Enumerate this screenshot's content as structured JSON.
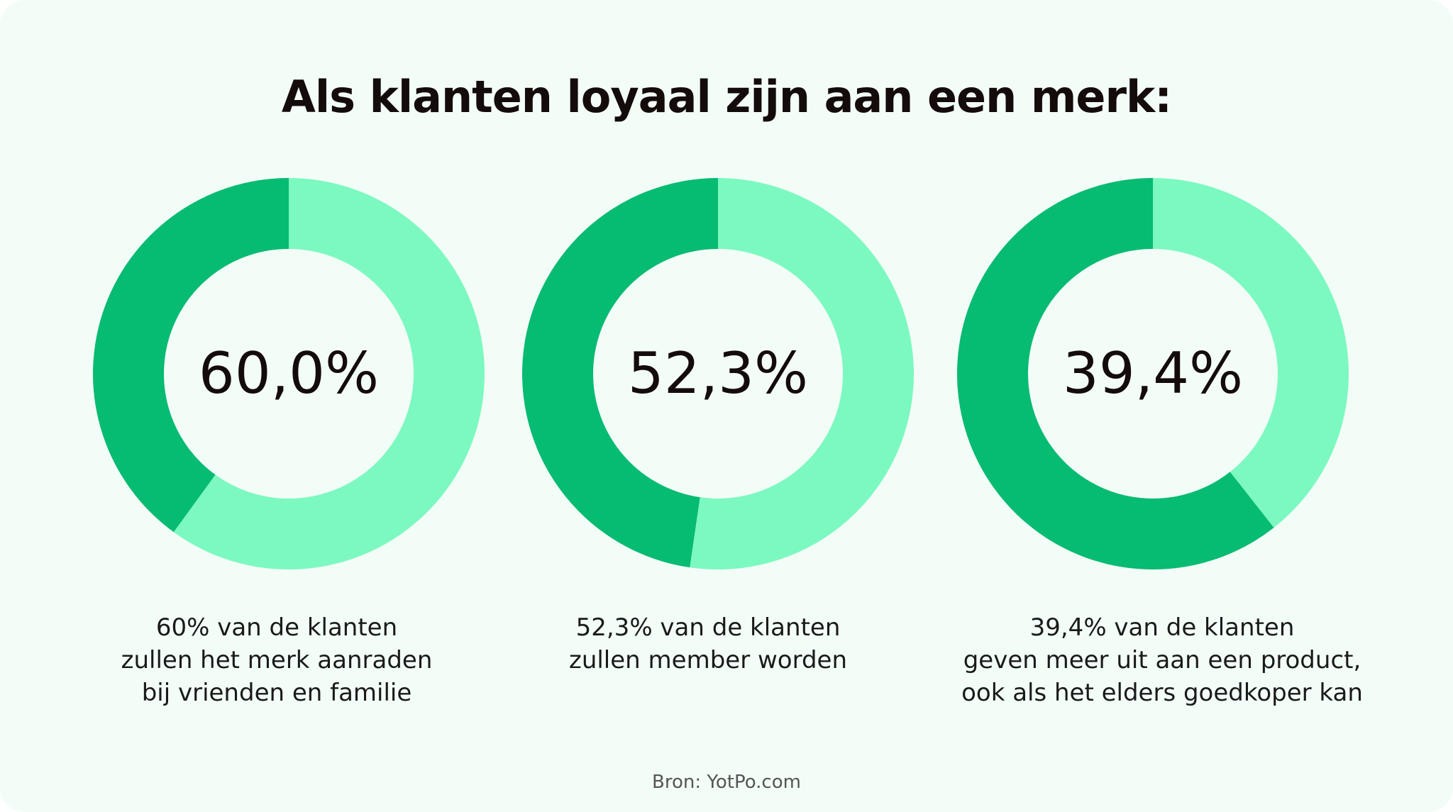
{
  "title": "Als klanten loyaal zijn aan een merk:",
  "source": "Bron: YotPo.com",
  "colors": {
    "background": "#f3fdf7",
    "dark_green": "#06bb72",
    "light_green": "#7cf9c0"
  },
  "chart_data": [
    {
      "type": "pie",
      "value_label": "60,0%",
      "caption": [
        "60% van de klanten",
        "zullen het merk aanraden",
        "bij vrienden en familie"
      ],
      "slices": [
        {
          "value": 60.0,
          "color": "#7cf9c0"
        },
        {
          "value": 40.0,
          "color": "#06bb72"
        }
      ]
    },
    {
      "type": "pie",
      "value_label": "52,3%",
      "caption": [
        "52,3% van de klanten",
        "zullen member worden"
      ],
      "slices": [
        {
          "value": 52.3,
          "color": "#7cf9c0"
        },
        {
          "value": 47.7,
          "color": "#06bb72"
        }
      ]
    },
    {
      "type": "pie",
      "value_label": "39,4%",
      "caption": [
        "39,4% van de klanten",
        "geven meer uit aan een product,",
        "ook als het elders goedkoper kan"
      ],
      "slices": [
        {
          "value": 39.4,
          "color": "#7cf9c0"
        },
        {
          "value": 60.6,
          "color": "#06bb72"
        }
      ]
    }
  ]
}
